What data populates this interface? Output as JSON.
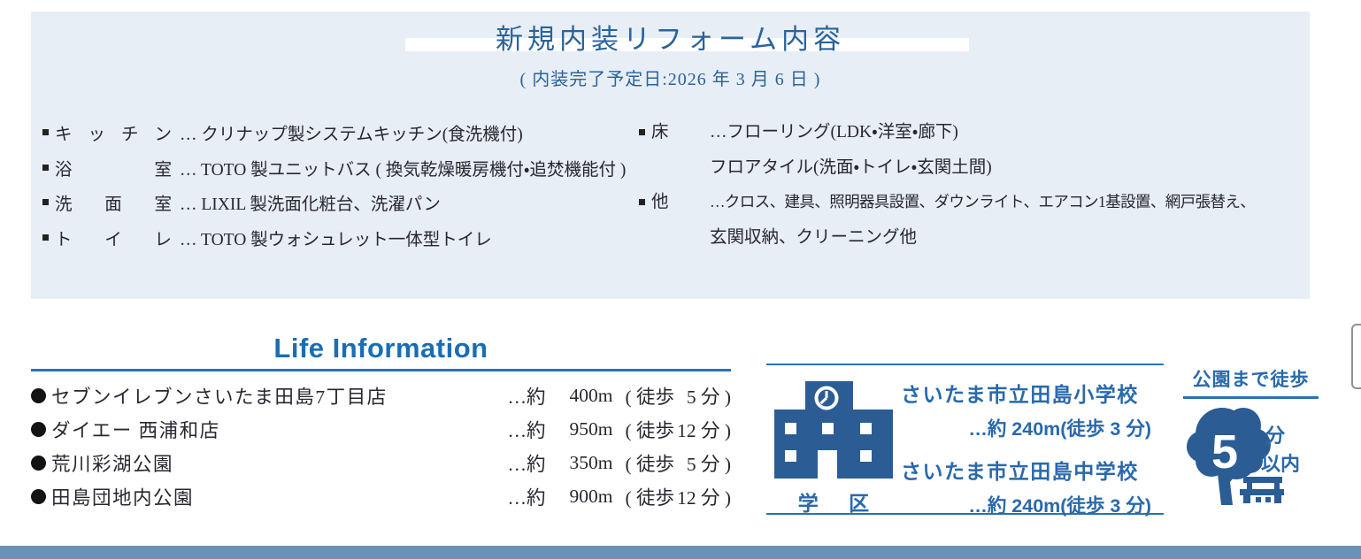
{
  "renovation": {
    "title": "新規内装リフォーム内容",
    "subtitle": "( 内装完了予定日:2026 年 3 月 6 日 )",
    "left_items": [
      {
        "label": "キッチン",
        "desc": "… クリナップ製システムキッチン(食洗機付)"
      },
      {
        "label": "浴室",
        "desc": "… TOTO 製ユニットバス ( 換気乾燥暖房機付・追焚機能付 )"
      },
      {
        "label": "洗面室",
        "desc": "… LIXIL 製洗面化粧台、洗濯パン"
      },
      {
        "label": "トイレ",
        "desc": "… TOTO 製ウォシュレット一体型トイレ"
      }
    ],
    "right_items": [
      {
        "label": "床",
        "line1": "…フローリング(LDK・洋室・廊下)",
        "line2": "フロアタイル(洗面・トイレ・玄関土間)"
      },
      {
        "label": "他",
        "line1": "…クロス、建具、照明器具設置、ダウンライト、エアコン1基設置、網戸張替え、",
        "line2": "玄関収納、クリーニング他"
      }
    ]
  },
  "life_information": {
    "title": "Life Information",
    "items": [
      {
        "name": "セブンイレブンさいたま田島7丁目店",
        "approx": "…約",
        "dist": "400m",
        "walk": "( 徒歩",
        "mins": "5 分 )"
      },
      {
        "name": "ダイエー 西浦和店",
        "approx": "…約",
        "dist": "950m",
        "walk": "( 徒歩",
        "mins": "12 分 )"
      },
      {
        "name": "荒川彩湖公園",
        "approx": "…約",
        "dist": "350m",
        "walk": "( 徒歩",
        "mins": "5 分 )"
      },
      {
        "name": "田島団地内公園",
        "approx": "…約",
        "dist": "900m",
        "walk": "( 徒歩",
        "mins": "12 分 )"
      }
    ]
  },
  "school_district": {
    "label": "学 区",
    "schools": [
      {
        "name": "さいたま市立田島小学校",
        "distance": "…約 240m(徒歩 3 分)"
      },
      {
        "name": "さいたま市立田島中学校",
        "distance": "…約 240m(徒歩 3 分)"
      }
    ]
  },
  "park": {
    "header": "公園まで徒歩",
    "minutes": "5",
    "unit": "分",
    "within": "以内"
  },
  "colors": {
    "box_bg": "#e8eef5",
    "title_blue": "#2a639c",
    "life_blue": "#1a6db4",
    "underline_blue": "#2b72b0",
    "school_blue": "#2969ac",
    "icon_blue": "#2b5d94",
    "bottom_bar_blue": "#6a92b8",
    "text_dark": "#272730"
  }
}
